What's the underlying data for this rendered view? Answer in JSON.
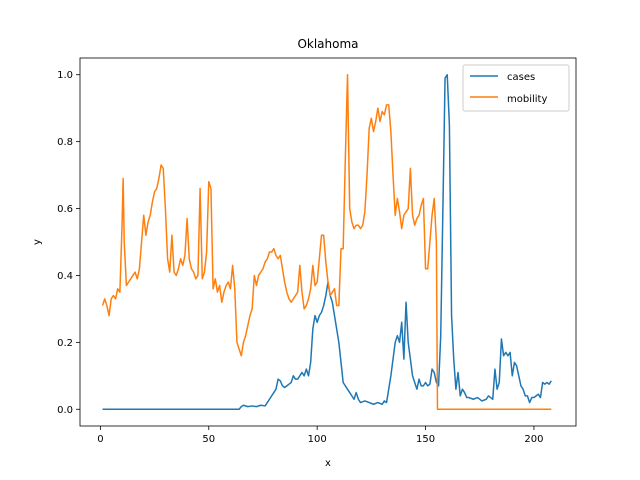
{
  "chart_data": {
    "type": "line",
    "title": "Oklahoma",
    "xlabel": "x",
    "ylabel": "y",
    "xlim": [
      -9.4,
      219.4
    ],
    "ylim": [
      -0.05,
      1.05
    ],
    "xticks": [
      0,
      50,
      100,
      150,
      200
    ],
    "xtick_labels": [
      "0",
      "50",
      "100",
      "150",
      "200"
    ],
    "yticks": [
      0.0,
      0.2,
      0.4,
      0.6,
      0.8,
      1.0
    ],
    "ytick_labels": [
      "0.0",
      "0.2",
      "0.4",
      "0.6",
      "0.8",
      "1.0"
    ],
    "grid": false,
    "legend_position": "top-right",
    "series": [
      {
        "name": "cases",
        "color": "#1f77b4",
        "points": [
          [
            1,
            0
          ],
          [
            10,
            0
          ],
          [
            20,
            0
          ],
          [
            30,
            0
          ],
          [
            40,
            0
          ],
          [
            50,
            0
          ],
          [
            60,
            0
          ],
          [
            64,
            0
          ],
          [
            65,
            0.008
          ],
          [
            66,
            0.012
          ],
          [
            68,
            0.008
          ],
          [
            70,
            0.01
          ],
          [
            72,
            0.008
          ],
          [
            74,
            0.012
          ],
          [
            76,
            0.01
          ],
          [
            77,
            0.02
          ],
          [
            78,
            0.03
          ],
          [
            79,
            0.04
          ],
          [
            80,
            0.05
          ],
          [
            81,
            0.06
          ],
          [
            82,
            0.09
          ],
          [
            83,
            0.085
          ],
          [
            84,
            0.07
          ],
          [
            85,
            0.065
          ],
          [
            86,
            0.07
          ],
          [
            87,
            0.075
          ],
          [
            88,
            0.08
          ],
          [
            89,
            0.1
          ],
          [
            90,
            0.09
          ],
          [
            91,
            0.09
          ],
          [
            92,
            0.1
          ],
          [
            93,
            0.11
          ],
          [
            94,
            0.1
          ],
          [
            95,
            0.12
          ],
          [
            96,
            0.1
          ],
          [
            97,
            0.14
          ],
          [
            98,
            0.24
          ],
          [
            99,
            0.28
          ],
          [
            100,
            0.26
          ],
          [
            101,
            0.28
          ],
          [
            102,
            0.29
          ],
          [
            103,
            0.31
          ],
          [
            104,
            0.34
          ],
          [
            105,
            0.38
          ],
          [
            106,
            0.34
          ],
          [
            107,
            0.32
          ],
          [
            108,
            0.28
          ],
          [
            109,
            0.24
          ],
          [
            110,
            0.2
          ],
          [
            111,
            0.14
          ],
          [
            112,
            0.08
          ],
          [
            113,
            0.07
          ],
          [
            114,
            0.06
          ],
          [
            115,
            0.05
          ],
          [
            116,
            0.04
          ],
          [
            117,
            0.03
          ],
          [
            118,
            0.05
          ],
          [
            119,
            0.03
          ],
          [
            120,
            0.02
          ],
          [
            122,
            0.025
          ],
          [
            124,
            0.02
          ],
          [
            126,
            0.015
          ],
          [
            128,
            0.02
          ],
          [
            130,
            0.015
          ],
          [
            131,
            0.025
          ],
          [
            132,
            0.02
          ],
          [
            133,
            0.06
          ],
          [
            134,
            0.1
          ],
          [
            135,
            0.15
          ],
          [
            136,
            0.2
          ],
          [
            137,
            0.22
          ],
          [
            138,
            0.2
          ],
          [
            139,
            0.26
          ],
          [
            140,
            0.15
          ],
          [
            141,
            0.32
          ],
          [
            142,
            0.2
          ],
          [
            143,
            0.15
          ],
          [
            144,
            0.1
          ],
          [
            145,
            0.08
          ],
          [
            146,
            0.06
          ],
          [
            147,
            0.09
          ],
          [
            148,
            0.07
          ],
          [
            149,
            0.07
          ],
          [
            150,
            0.08
          ],
          [
            151,
            0.07
          ],
          [
            152,
            0.075
          ],
          [
            153,
            0.12
          ],
          [
            154,
            0.11
          ],
          [
            155,
            0.08
          ],
          [
            156,
            0.07
          ],
          [
            157,
            0.22
          ],
          [
            158,
            0.6
          ],
          [
            159,
            0.99
          ],
          [
            160,
            1.0
          ],
          [
            161,
            0.85
          ],
          [
            162,
            0.28
          ],
          [
            163,
            0.15
          ],
          [
            164,
            0.06
          ],
          [
            165,
            0.11
          ],
          [
            166,
            0.04
          ],
          [
            167,
            0.06
          ],
          [
            168,
            0.05
          ],
          [
            169,
            0.035
          ],
          [
            170,
            0.035
          ],
          [
            172,
            0.03
          ],
          [
            174,
            0.035
          ],
          [
            176,
            0.025
          ],
          [
            178,
            0.03
          ],
          [
            179,
            0.04
          ],
          [
            180,
            0.035
          ],
          [
            181,
            0.03
          ],
          [
            182,
            0.12
          ],
          [
            183,
            0.06
          ],
          [
            184,
            0.08
          ],
          [
            185,
            0.21
          ],
          [
            186,
            0.16
          ],
          [
            187,
            0.17
          ],
          [
            188,
            0.16
          ],
          [
            189,
            0.17
          ],
          [
            190,
            0.1
          ],
          [
            191,
            0.14
          ],
          [
            192,
            0.13
          ],
          [
            193,
            0.1
          ],
          [
            194,
            0.07
          ],
          [
            195,
            0.06
          ],
          [
            196,
            0.04
          ],
          [
            197,
            0.04
          ],
          [
            198,
            0.02
          ],
          [
            199,
            0.035
          ],
          [
            200,
            0.035
          ],
          [
            201,
            0.04
          ],
          [
            202,
            0.045
          ],
          [
            203,
            0.035
          ],
          [
            204,
            0.08
          ],
          [
            205,
            0.075
          ],
          [
            206,
            0.08
          ],
          [
            207,
            0.075
          ],
          [
            208,
            0.085
          ]
        ]
      },
      {
        "name": "mobility",
        "color": "#ff7f0e",
        "points": [
          [
            1,
            0.31
          ],
          [
            2,
            0.33
          ],
          [
            3,
            0.31
          ],
          [
            4,
            0.28
          ],
          [
            5,
            0.33
          ],
          [
            6,
            0.34
          ],
          [
            7,
            0.33
          ],
          [
            8,
            0.36
          ],
          [
            9,
            0.35
          ],
          [
            10,
            0.55
          ],
          [
            10.5,
            0.69
          ],
          [
            11,
            0.5
          ],
          [
            12,
            0.37
          ],
          [
            13,
            0.38
          ],
          [
            14,
            0.39
          ],
          [
            15,
            0.4
          ],
          [
            16,
            0.41
          ],
          [
            17,
            0.39
          ],
          [
            18,
            0.42
          ],
          [
            19,
            0.5
          ],
          [
            20,
            0.58
          ],
          [
            21,
            0.52
          ],
          [
            22,
            0.56
          ],
          [
            23,
            0.58
          ],
          [
            24,
            0.62
          ],
          [
            25,
            0.65
          ],
          [
            26,
            0.66
          ],
          [
            27,
            0.69
          ],
          [
            28,
            0.73
          ],
          [
            29,
            0.72
          ],
          [
            30,
            0.6
          ],
          [
            31,
            0.45
          ],
          [
            32,
            0.41
          ],
          [
            33,
            0.52
          ],
          [
            34,
            0.41
          ],
          [
            35,
            0.4
          ],
          [
            36,
            0.42
          ],
          [
            37,
            0.45
          ],
          [
            38,
            0.43
          ],
          [
            39,
            0.46
          ],
          [
            40,
            0.57
          ],
          [
            41,
            0.45
          ],
          [
            42,
            0.42
          ],
          [
            43,
            0.41
          ],
          [
            44,
            0.39
          ],
          [
            45,
            0.4
          ],
          [
            46,
            0.66
          ],
          [
            47,
            0.39
          ],
          [
            48,
            0.41
          ],
          [
            49,
            0.47
          ],
          [
            50,
            0.68
          ],
          [
            51,
            0.66
          ],
          [
            52,
            0.36
          ],
          [
            53,
            0.39
          ],
          [
            54,
            0.35
          ],
          [
            55,
            0.37
          ],
          [
            56,
            0.32
          ],
          [
            57,
            0.35
          ],
          [
            58,
            0.37
          ],
          [
            59,
            0.38
          ],
          [
            60,
            0.36
          ],
          [
            61,
            0.43
          ],
          [
            62,
            0.36
          ],
          [
            63,
            0.2
          ],
          [
            64,
            0.18
          ],
          [
            65,
            0.16
          ],
          [
            66,
            0.2
          ],
          [
            67,
            0.22
          ],
          [
            68,
            0.25
          ],
          [
            69,
            0.28
          ],
          [
            70,
            0.3
          ],
          [
            71,
            0.4
          ],
          [
            72,
            0.37
          ],
          [
            73,
            0.4
          ],
          [
            74,
            0.41
          ],
          [
            75,
            0.42
          ],
          [
            76,
            0.44
          ],
          [
            77,
            0.45
          ],
          [
            78,
            0.47
          ],
          [
            79,
            0.47
          ],
          [
            80,
            0.48
          ],
          [
            81,
            0.46
          ],
          [
            82,
            0.45
          ],
          [
            83,
            0.46
          ],
          [
            84,
            0.42
          ],
          [
            85,
            0.38
          ],
          [
            86,
            0.35
          ],
          [
            87,
            0.33
          ],
          [
            88,
            0.32
          ],
          [
            89,
            0.33
          ],
          [
            90,
            0.34
          ],
          [
            91,
            0.35
          ],
          [
            92,
            0.43
          ],
          [
            93,
            0.35
          ],
          [
            94,
            0.3
          ],
          [
            95,
            0.31
          ],
          [
            96,
            0.33
          ],
          [
            97,
            0.36
          ],
          [
            98,
            0.43
          ],
          [
            99,
            0.37
          ],
          [
            100,
            0.38
          ],
          [
            101,
            0.45
          ],
          [
            102,
            0.52
          ],
          [
            103,
            0.52
          ],
          [
            104,
            0.44
          ],
          [
            105,
            0.38
          ],
          [
            106,
            0.34
          ],
          [
            107,
            0.35
          ],
          [
            108,
            0.36
          ],
          [
            109,
            0.31
          ],
          [
            110,
            0.31
          ],
          [
            111,
            0.48
          ],
          [
            112,
            0.48
          ],
          [
            113,
            0.75
          ],
          [
            114,
            1.0
          ],
          [
            115,
            0.6
          ],
          [
            116,
            0.56
          ],
          [
            117,
            0.54
          ],
          [
            118,
            0.55
          ],
          [
            119,
            0.55
          ],
          [
            120,
            0.54
          ],
          [
            121,
            0.55
          ],
          [
            122,
            0.59
          ],
          [
            123,
            0.7
          ],
          [
            124,
            0.84
          ],
          [
            125,
            0.87
          ],
          [
            126,
            0.83
          ],
          [
            127,
            0.86
          ],
          [
            128,
            0.9
          ],
          [
            129,
            0.86
          ],
          [
            130,
            0.89
          ],
          [
            131,
            0.88
          ],
          [
            132,
            0.91
          ],
          [
            133,
            0.91
          ],
          [
            134,
            0.83
          ],
          [
            135,
            0.7
          ],
          [
            136,
            0.58
          ],
          [
            137,
            0.63
          ],
          [
            138,
            0.59
          ],
          [
            139,
            0.54
          ],
          [
            140,
            0.58
          ],
          [
            141,
            0.59
          ],
          [
            142,
            0.6
          ],
          [
            143,
            0.72
          ],
          [
            144,
            0.58
          ],
          [
            145,
            0.55
          ],
          [
            146,
            0.57
          ],
          [
            147,
            0.58
          ],
          [
            148,
            0.61
          ],
          [
            149,
            0.63
          ],
          [
            150,
            0.42
          ],
          [
            151,
            0.42
          ],
          [
            152,
            0.5
          ],
          [
            153,
            0.58
          ],
          [
            154,
            0.63
          ],
          [
            155,
            0.5
          ],
          [
            155.5,
            0.0
          ],
          [
            156,
            0.0
          ],
          [
            208,
            0.0
          ]
        ]
      }
    ]
  }
}
